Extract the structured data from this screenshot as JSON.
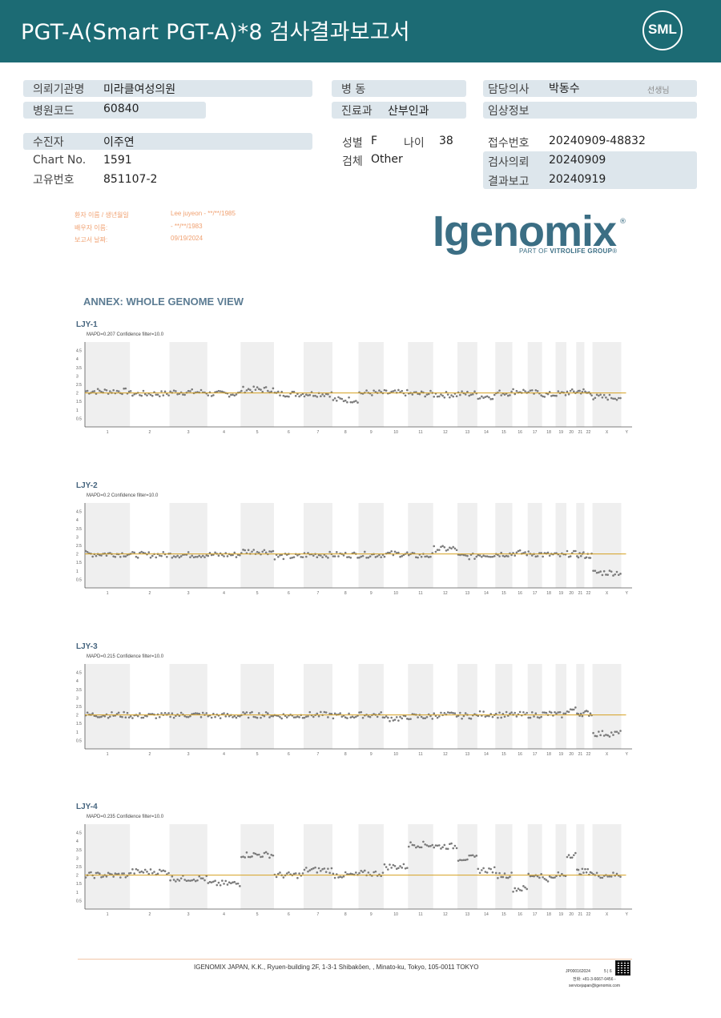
{
  "header": {
    "title": "PGT-A(Smart  PGT-A)*8 검사결과보고서",
    "logo_text": "SML"
  },
  "info": {
    "hospital_label": "의뢰기관명",
    "hospital": "미라클여성의원",
    "ward_label": "병    동",
    "ward": "",
    "doctor_label": "담당의사",
    "doctor": "박동수",
    "doctor_suffix": "선생님",
    "code_label": "병원코드",
    "code": "60840",
    "dept_label": "진료과",
    "dept": "산부인과",
    "clinical_label": "임상정보",
    "clinical": "",
    "patient_label": "수진자",
    "patient": "이주연",
    "sex_label": "성별",
    "sex": "F",
    "age_label": "나이",
    "age": "38",
    "receipt_label": "접수번호",
    "receipt": "20240909-48832",
    "chart_label": "Chart No.",
    "chart": "1591",
    "specimen_label": "검체",
    "specimen": "Other",
    "request_label": "검사의뢰",
    "request": "20240909",
    "id_label": "고유번호",
    "id": "851107-2",
    "report_label": "결과보고",
    "report": "20240919"
  },
  "embedded": {
    "patient_label": "환자 이름 / 생년월일",
    "patient_value": "Lee juyeon - **/**/1985",
    "spouse_label": "배우자 이름:",
    "spouse_value": " - **/**/1983",
    "report_date_label": "보고서 날짜:",
    "report_date_value": "09/19/2024"
  },
  "brand": {
    "name": "Igenomix",
    "reg": "®",
    "sub_prefix": "PART OF ",
    "sub_bold": "VITROLIFE GROUP",
    "sub_tm": "®"
  },
  "annex_title": "ANNEX: WHOLE GENOME VIEW",
  "chart_data": [
    {
      "type": "scatter",
      "title": "LJY-1",
      "subtitle": "MAPD=0.207 Confidence filter=10.0",
      "ylim": [
        0,
        5
      ],
      "yticks": [
        "0.5",
        "1",
        "1.5",
        "2",
        "2.5",
        "3",
        "3.5",
        "4",
        "4.5"
      ],
      "categories": [
        "1",
        "2",
        "3",
        "4",
        "5",
        "6",
        "7",
        "8",
        "9",
        "10",
        "11",
        "12",
        "13",
        "14",
        "15",
        "16",
        "17",
        "18",
        "19",
        "20",
        "21",
        "22",
        "X",
        "Y"
      ],
      "series": [
        {
          "values": [
            2.1,
            1.95,
            2.05,
            1.95,
            2.2,
            1.95,
            1.95,
            1.6,
            2.0,
            2.0,
            1.95,
            1.9,
            1.95,
            1.8,
            2.0,
            2.1,
            2.0,
            1.9,
            1.95,
            2.05,
            2.1,
            2.0,
            1.75,
            0
          ]
        }
      ],
      "reference_line": 2
    },
    {
      "type": "scatter",
      "title": "LJY-2",
      "subtitle": "MAPD=0.2 Confidence filter=10.0",
      "ylim": [
        0,
        5
      ],
      "yticks": [
        "0.5",
        "1",
        "1.5",
        "2",
        "2.5",
        "3",
        "3.5",
        "4",
        "4.5"
      ],
      "categories": [
        "1",
        "2",
        "3",
        "4",
        "5",
        "6",
        "7",
        "8",
        "9",
        "10",
        "11",
        "12",
        "13",
        "14",
        "15",
        "16",
        "17",
        "18",
        "19",
        "20",
        "21",
        "22",
        "X",
        "Y"
      ],
      "series": [
        {
          "values": [
            2.0,
            1.95,
            1.95,
            1.95,
            2.15,
            1.85,
            1.95,
            1.95,
            1.95,
            2.0,
            1.9,
            2.3,
            1.85,
            1.95,
            2.0,
            2.05,
            2.0,
            1.95,
            1.9,
            2.0,
            1.95,
            1.9,
            0.9,
            0
          ]
        }
      ],
      "reference_line": 2
    },
    {
      "type": "scatter",
      "title": "LJY-3",
      "subtitle": "MAPD=0.215 Confidence filter=10.0",
      "ylim": [
        0,
        5
      ],
      "yticks": [
        "0.5",
        "1",
        "1.5",
        "2",
        "2.5",
        "3",
        "3.5",
        "4",
        "4.5"
      ],
      "categories": [
        "1",
        "2",
        "3",
        "4",
        "5",
        "6",
        "7",
        "8",
        "9",
        "10",
        "11",
        "12",
        "13",
        "14",
        "15",
        "16",
        "17",
        "18",
        "19",
        "20",
        "21",
        "22",
        "X",
        "Y"
      ],
      "series": [
        {
          "values": [
            2.0,
            1.95,
            2.0,
            1.95,
            2.0,
            1.95,
            2.0,
            1.95,
            2.0,
            1.8,
            1.9,
            2.0,
            1.95,
            2.05,
            2.0,
            2.0,
            2.0,
            2.05,
            2.0,
            2.3,
            2.1,
            2.1,
            0.9,
            0
          ]
        }
      ],
      "reference_line": 2
    },
    {
      "type": "scatter",
      "title": "LJY-4",
      "subtitle": "MAPD=0.235 Confidence filter=10.0",
      "ylim": [
        0,
        5
      ],
      "yticks": [
        "0.5",
        "1",
        "1.5",
        "2",
        "2.5",
        "3",
        "3.5",
        "4",
        "4.5"
      ],
      "categories": [
        "1",
        "2",
        "3",
        "4",
        "5",
        "6",
        "7",
        "8",
        "9",
        "10",
        "11",
        "12",
        "13",
        "14",
        "15",
        "16",
        "17",
        "18",
        "19",
        "20",
        "21",
        "22",
        "X",
        "Y"
      ],
      "series": [
        {
          "values": [
            2.0,
            2.2,
            1.8,
            1.5,
            3.2,
            2.0,
            2.3,
            2.0,
            2.1,
            2.5,
            3.8,
            3.7,
            3.0,
            2.3,
            2.0,
            1.2,
            2.0,
            1.8,
            2.0,
            3.2,
            2.2,
            2.2,
            2.0,
            0
          ]
        }
      ],
      "reference_line": 2
    }
  ],
  "footer": {
    "address": "IGENOMIX JAPAN, K.K., Ryuen-building 2F, 1-3-1 Shibakōen, , Minato-ku, Tokyo, 105-0011 TOKYO",
    "code": "JP000162024",
    "page": "5 | 6",
    "tel": "전화: +81-3-6667-0456 -",
    "email": "servicejapan@igenomix.com"
  }
}
